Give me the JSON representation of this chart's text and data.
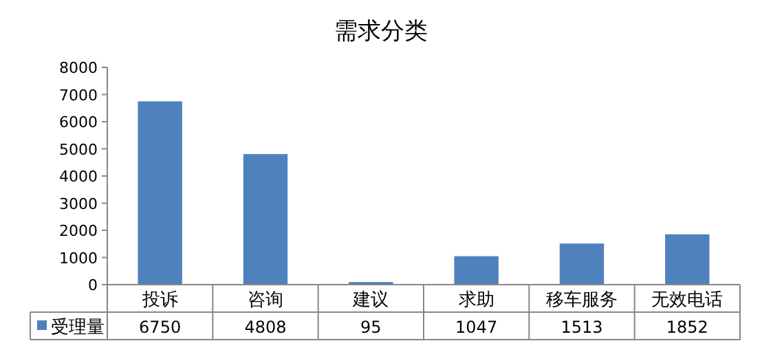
{
  "chart_data": {
    "type": "bar",
    "title": "需求分类",
    "categories": [
      "投诉",
      "咨询",
      "建议",
      "求助",
      "移车服务",
      "无效电话"
    ],
    "series": [
      {
        "name": "受理量",
        "color": "#4f81bd",
        "values": [
          6750,
          4808,
          95,
          1047,
          1513,
          1852
        ]
      }
    ],
    "ylim": [
      0,
      8000
    ],
    "yticks": [
      0,
      1000,
      2000,
      3000,
      4000,
      5000,
      6000,
      7000,
      8000
    ],
    "grid": false,
    "legend": "bottom",
    "data_labels": true
  }
}
